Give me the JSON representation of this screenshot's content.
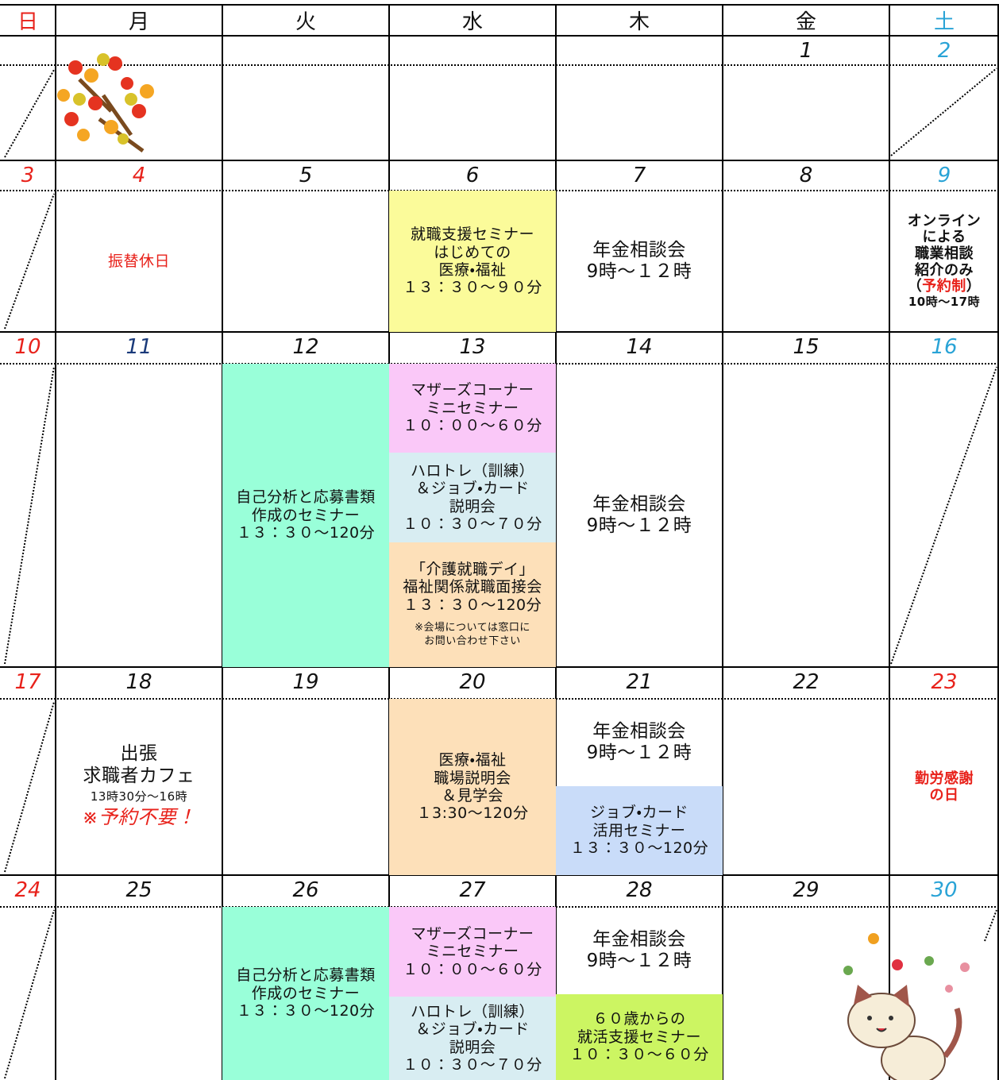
{
  "header": {
    "weekdays": [
      "日",
      "月",
      "火",
      "水",
      "木",
      "金",
      "土"
    ]
  },
  "weeks": [
    {
      "dates": [
        null,
        null,
        null,
        null,
        null,
        1,
        2
      ]
    },
    {
      "dates": [
        3,
        4,
        5,
        6,
        7,
        8,
        9
      ],
      "events": [
        {
          "text": "振替休日"
        },
        {
          "text": "就職支援セミナー\nはじめての\n医療・福祉\n１３：３０～９０分"
        },
        {
          "text": "年金相談会\n9時～１２時"
        },
        {
          "text": "オンライン\nによる\n職業相談\n紹介のみ",
          "reservation": [
            "（",
            "予約制",
            "）"
          ],
          "hours": "10時～17時"
        }
      ]
    },
    {
      "dates": [
        10,
        11,
        12,
        13,
        14,
        15,
        16
      ],
      "events": [
        {
          "text": "自己分析と応募書類\n作成のセミナー\n１３：３０～120分"
        },
        {
          "text": "マザーズコーナー\nミニセミナー\n１０：００～６０分"
        },
        {
          "text": "ハロトレ（訓練）\n＆ジョブ・カード\n説明会\n１０：３０～７０分"
        },
        {
          "text": "「介護就職デイ」\n福祉関係就職面接会\n１３：３０～120分",
          "note": "※会場については窓口に\nお問い合わせ下さい"
        },
        {
          "text": "年金相談会\n9時～１２時"
        }
      ]
    },
    {
      "dates": [
        17,
        18,
        19,
        20,
        21,
        22,
        23
      ],
      "events": [
        {
          "text": "出張\n求職者カフェ",
          "time": "13時30分～16時",
          "note": "※予約不要！"
        },
        {
          "text": "医療・福祉\n職場説明会\n＆見学会\n１3:30～120分"
        },
        {
          "text": "年金相談会\n9時～１２時"
        },
        {
          "text": "ジョブ・カード\n活用セミナー\n１３：３０～120分"
        },
        {
          "text": "勤労感謝\nの日"
        }
      ]
    },
    {
      "dates": [
        24,
        25,
        26,
        27,
        28,
        29,
        30
      ],
      "events": [
        {
          "text": "自己分析と応募書類\n作成のセミナー\n１３：３０～120分"
        },
        {
          "text": "マザーズコーナー\nミニセミナー\n１０：００～６０分"
        },
        {
          "text": "ハロトレ（訓練）\n＆ジョブ・カード\n説明会\n１０：３０～７０分"
        },
        {
          "text": "年金相談会\n9時～１２時"
        },
        {
          "text": "６０歳からの\n就活支援セミナー\n１０：３０～６０分"
        }
      ]
    }
  ]
}
